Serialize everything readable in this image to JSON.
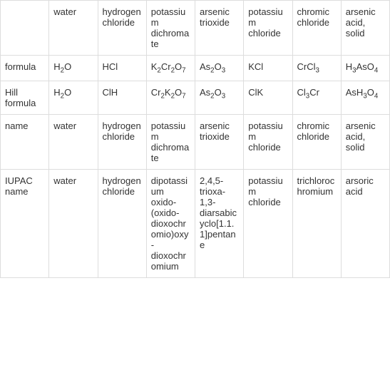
{
  "table": {
    "headers": [
      "",
      "water",
      "hydrogen chloride",
      "potassium dichromate",
      "arsenic trioxide",
      "potassium chloride",
      "chromic chloride",
      "arsenic acid, solid"
    ],
    "rows": [
      {
        "label": "formula",
        "cells": [
          {
            "html": "H<sub>2</sub>O"
          },
          {
            "html": "HCl"
          },
          {
            "html": "K<sub>2</sub>Cr<sub>2</sub>O<sub>7</sub>"
          },
          {
            "html": "As<sub>2</sub>O<sub>3</sub>"
          },
          {
            "html": "KCl"
          },
          {
            "html": "CrCl<sub>3</sub>"
          },
          {
            "html": "H<sub>3</sub>AsO<sub>4</sub>"
          }
        ]
      },
      {
        "label": "Hill formula",
        "cells": [
          {
            "html": "H<sub>2</sub>O"
          },
          {
            "html": "ClH"
          },
          {
            "html": "Cr<sub>2</sub>K<sub>2</sub>O<sub>7</sub>"
          },
          {
            "html": "As<sub>2</sub>O<sub>3</sub>"
          },
          {
            "html": "ClK"
          },
          {
            "html": "Cl<sub>3</sub>Cr"
          },
          {
            "html": "AsH<sub>3</sub>O<sub>4</sub>"
          }
        ]
      },
      {
        "label": "name",
        "cells": [
          {
            "text": "water"
          },
          {
            "text": "hydrogen chloride"
          },
          {
            "text": "potassium dichromate"
          },
          {
            "text": "arsenic trioxide"
          },
          {
            "text": "potassium chloride"
          },
          {
            "text": "chromic chloride"
          },
          {
            "text": "arsenic acid, solid"
          }
        ]
      },
      {
        "label": "IUPAC name",
        "cells": [
          {
            "text": "water"
          },
          {
            "text": "hydrogen chloride"
          },
          {
            "text": "dipotassium oxido-(oxido-dioxochromio)oxy-dioxochromium"
          },
          {
            "text": "2,4,5-trioxa-1,3-diarsabicyclo[1.1.1]pentane"
          },
          {
            "text": "potassium chloride"
          },
          {
            "text": "trichlorochromium"
          },
          {
            "text": "arsoric acid"
          }
        ]
      }
    ],
    "border_color": "#dddddd",
    "text_color": "#333333",
    "background_color": "#ffffff",
    "font_size": 13
  }
}
